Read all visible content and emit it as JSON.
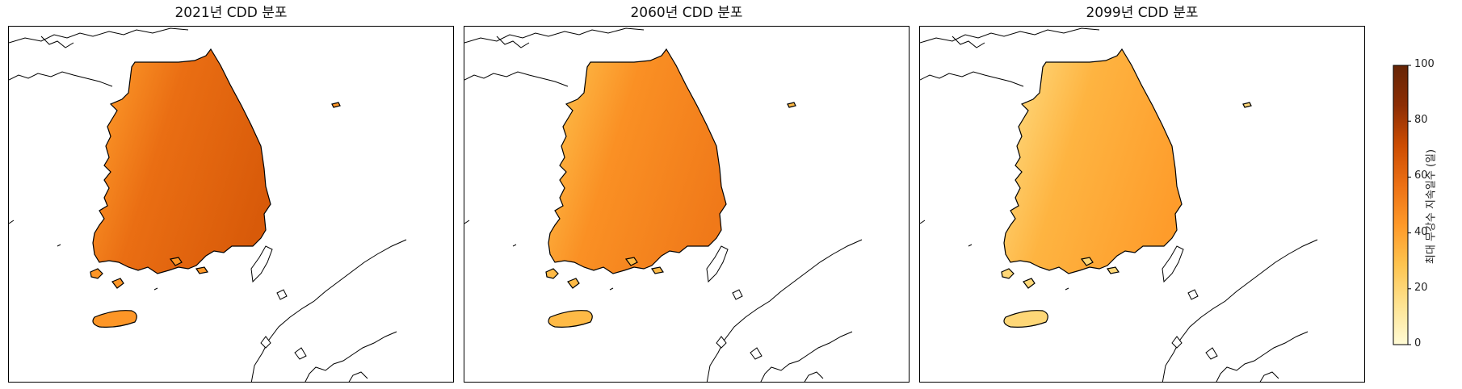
{
  "panels": [
    {
      "id": "p2021",
      "title": "2021년 CDD 분포",
      "mean_cdd": 58
    },
    {
      "id": "p2060",
      "title": "2060년 CDD 분포",
      "mean_cdd": 46
    },
    {
      "id": "p2099",
      "title": "2099년 CDD 분포",
      "mean_cdd": 34
    }
  ],
  "colorbar": {
    "label": "최대 무강수 지속일수 (일)",
    "min": 0,
    "max": 100,
    "ticks": [
      "0",
      "20",
      "40",
      "60",
      "80",
      "100"
    ],
    "colors": [
      "#fffbd5",
      "#fee391",
      "#fec44f",
      "#fe9929",
      "#ec7014",
      "#cc4c02",
      "#8c2d04",
      "#662506"
    ]
  },
  "colors": {
    "coastline": "#000000",
    "island_fill": "#fde7a0"
  }
}
